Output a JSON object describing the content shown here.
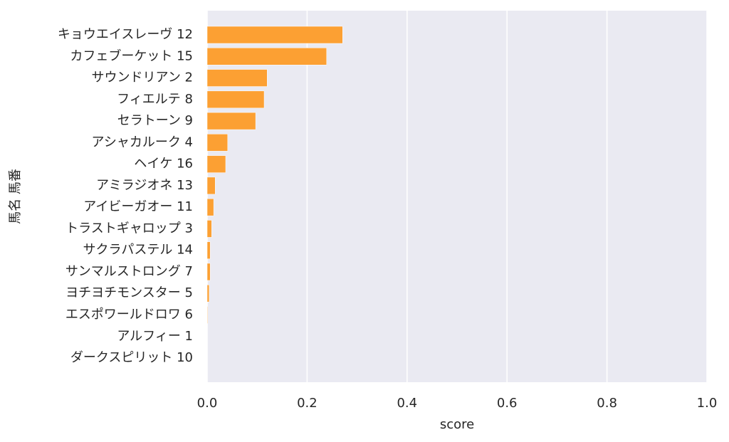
{
  "chart_data": {
    "type": "barh",
    "xlabel": "score",
    "ylabel": "馬名 馬番",
    "categories": [
      "キョウエイスレーヴ 12",
      "カフェブーケット 15",
      "サウンドリアン 2",
      "フィエルテ 8",
      "セラトーン 9",
      "アシャカルーク 4",
      "ヘイケ 16",
      "アミラジオネ 13",
      "アイビーガオー 11",
      "トラストギャロップ 3",
      "サクラパステル 14",
      "サンマルストロング 7",
      "ヨチヨチモンスター 5",
      "エスポワールドロワ 6",
      "アルフィー 1",
      "ダークスピリット 10"
    ],
    "values": [
      0.271,
      0.239,
      0.12,
      0.114,
      0.097,
      0.041,
      0.037,
      0.016,
      0.013,
      0.009,
      0.006,
      0.006,
      0.004,
      0.001,
      0,
      0
    ],
    "color": "#fca033",
    "xlim": [
      0,
      1
    ],
    "xticks": [
      {
        "value": 0,
        "label": "0.0"
      },
      0.2,
      0.4,
      0.6,
      0.8,
      {
        "value": 1,
        "label": "1.0"
      }
    ],
    "grid": true
  }
}
